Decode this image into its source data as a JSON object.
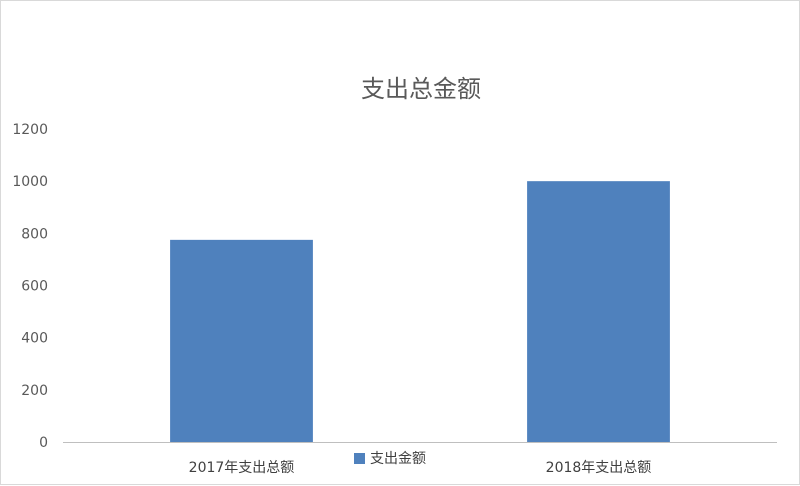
{
  "chart_data": {
    "type": "bar",
    "title": "支出总金额",
    "categories": [
      "2017年支出总额",
      "2018年支出总额"
    ],
    "series": [
      {
        "name": "支出金额",
        "values": [
          775,
          1000
        ]
      }
    ],
    "ylim": [
      0,
      1200
    ],
    "yticks": [
      0,
      200,
      400,
      600,
      800,
      1000,
      1200
    ],
    "grid": false,
    "legend_position": "bottom",
    "colors": {
      "bar": "#4f81bd",
      "axis": "#bfbfbf",
      "text": "#595959"
    }
  }
}
